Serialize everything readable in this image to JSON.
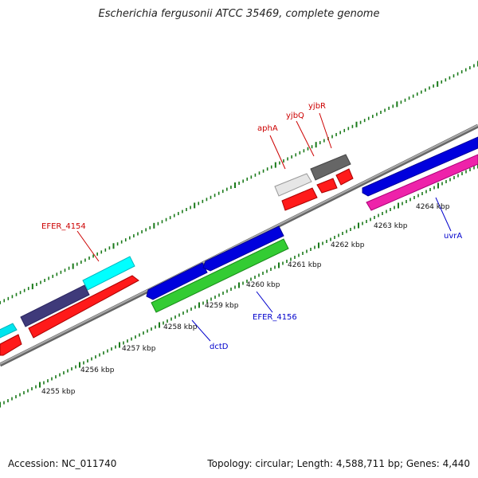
{
  "title": "Escherichia fergusonii ATCC 35469, complete genome",
  "footer": {
    "accession": "Accession: NC_011740",
    "topology": "Topology: circular; Length: 4,588,711 bp; Genes: 4,440"
  },
  "colors": {
    "label_red": "#cc0000",
    "label_blue": "#0000cc",
    "tick_green": "#1a7a1a",
    "backbone": "#888888"
  },
  "kbp_labels": [
    "4255 kbp",
    "4256 kbp",
    "4257 kbp",
    "4258 kbp",
    "4259 kbp",
    "4260 kbp",
    "4261 kbp",
    "4262 kbp",
    "4263 kbp",
    "4264 kbp"
  ],
  "gene_labels": {
    "efer_4154": "EFER_4154",
    "apha": "aphA",
    "yjbq": "yjbQ",
    "yjbr": "yjbR",
    "dctd": "dctD",
    "efer_4156": "EFER_4156",
    "uvra": "uvrA"
  }
}
